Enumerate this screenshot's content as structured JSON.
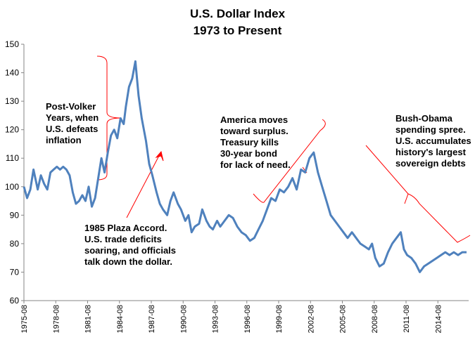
{
  "chart_data": {
    "type": "line",
    "title": "U.S. Dollar Index",
    "subtitle": "1973 to Present",
    "xlabel": "",
    "ylabel": "",
    "ylim": [
      60,
      150
    ],
    "yticks": [
      60,
      70,
      80,
      90,
      100,
      110,
      120,
      130,
      140,
      150
    ],
    "xlim": [
      1975.5,
      2017.4
    ],
    "xtick_labels": [
      "1975-08",
      "1978-08",
      "1981-08",
      "1984-08",
      "1987-08",
      "1990-08",
      "1993-08",
      "1996-08",
      "1999-08",
      "2002-08",
      "2005-08",
      "2008-08",
      "2011-08",
      "2014-08"
    ],
    "grid": false,
    "legend": "none",
    "line_color": "#4f81bd",
    "annotation_color": "#ff0000",
    "series": [
      {
        "x": [
          1975.5,
          1975.8,
          1976.1,
          1976.4,
          1976.8,
          1977.1,
          1977.4,
          1977.7,
          1978.0,
          1978.3,
          1978.6,
          1978.9,
          1979.2,
          1979.5,
          1979.8,
          1980.1,
          1980.4,
          1980.7,
          1981.0,
          1981.3,
          1981.6,
          1981.9,
          1982.2,
          1982.5,
          1982.8,
          1983.1,
          1983.4,
          1983.7,
          1984.0,
          1984.3,
          1984.6,
          1984.9,
          1985.1,
          1985.4,
          1985.7,
          1986.0,
          1986.3,
          1986.6,
          1987.0,
          1987.3,
          1987.6,
          1988.0,
          1988.3,
          1988.6,
          1989.0,
          1989.3,
          1989.6,
          1990.0,
          1990.3,
          1990.7,
          1991.0,
          1991.3,
          1991.6,
          1992.0,
          1992.3,
          1992.7,
          1993.0,
          1993.3,
          1993.7,
          1994.0,
          1994.4,
          1994.8,
          1995.2,
          1995.6,
          1996.0,
          1996.4,
          1996.8,
          1997.2,
          1997.6,
          1998.0,
          1998.4,
          1998.8,
          1999.2,
          1999.6,
          2000.0,
          2000.4,
          2000.8,
          2001.2,
          2001.6,
          2002.0,
          2002.4,
          2002.8,
          2003.2,
          2003.6,
          2004.0,
          2004.4,
          2004.8,
          2005.2,
          2005.6,
          2006.0,
          2006.4,
          2006.8,
          2007.2,
          2007.6,
          2008.0,
          2008.3,
          2008.6,
          2009.0,
          2009.4,
          2009.8,
          2010.2,
          2010.6,
          2011.0,
          2011.3,
          2011.6,
          2012.0,
          2012.4,
          2012.8,
          2013.2,
          2013.6,
          2014.0,
          2014.4,
          2014.8,
          2015.2,
          2015.6,
          2016.0,
          2016.4,
          2016.8,
          2017.2
        ],
        "values": [
          100,
          96,
          99,
          106,
          99,
          104,
          101,
          99,
          105,
          106,
          107,
          106,
          107,
          106,
          104,
          98,
          94,
          95,
          97,
          95,
          100,
          93,
          96,
          103,
          110,
          105,
          112,
          118,
          120,
          117,
          124,
          122,
          128,
          135,
          138,
          144,
          132,
          124,
          116,
          108,
          104,
          98,
          94,
          92,
          90,
          95,
          98,
          94,
          92,
          88,
          90,
          84,
          86,
          87,
          92,
          88,
          86,
          85,
          88,
          86,
          88,
          90,
          89,
          86,
          84,
          83,
          81,
          82,
          85,
          88,
          92,
          96,
          95,
          99,
          98,
          100,
          103,
          99,
          106,
          105,
          110,
          112,
          105,
          100,
          95,
          90,
          88,
          86,
          84,
          82,
          84,
          82,
          80,
          79,
          78,
          80,
          75,
          72,
          73,
          77,
          80,
          82,
          84,
          78,
          76,
          75,
          73,
          70,
          72,
          73,
          74,
          75,
          76,
          77,
          76,
          77,
          76,
          77,
          77
        ]
      }
    ],
    "annotations": [
      {
        "text": "Post-Volker\nYears, when\nU.S. defeats\ninflation"
      },
      {
        "text": "1985  Plaza Accord.\nU.S. trade deficits\nsoaring, and officials\ntalk down the dollar."
      },
      {
        "text": "America moves\ntoward surplus.\nTreasury kills\n30-year bond\nfor lack of need."
      },
      {
        "text": "Bush-Obama\nspending spree.\nU.S. accumulates\nhistory's largest\nsovereign debts"
      }
    ]
  }
}
